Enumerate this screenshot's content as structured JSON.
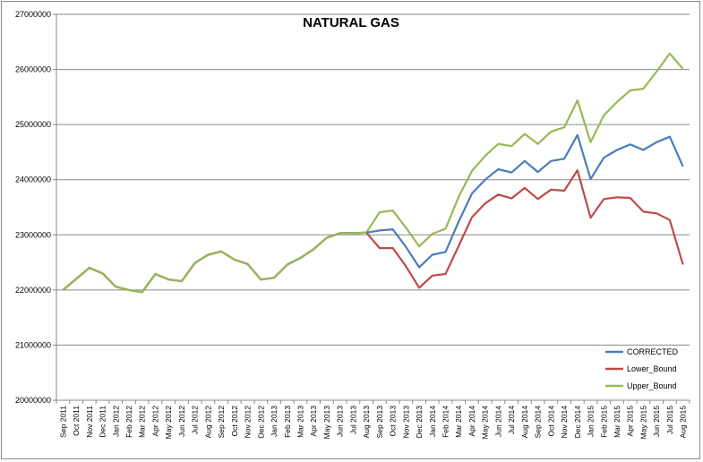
{
  "chart_data": {
    "type": "line",
    "title": "NATURAL  GAS",
    "xlabel": "",
    "ylabel": "",
    "ylim": [
      20000000,
      27000000
    ],
    "y_ticks": [
      "20000000",
      "21000000",
      "22000000",
      "23000000",
      "24000000",
      "25000000",
      "26000000",
      "27000000"
    ],
    "grid": "horizontal",
    "legend_position": "bottom-right",
    "categories": [
      "Sep 2011",
      "Oct 2011",
      "Nov 2011",
      "Dec 2011",
      "Jan 2012",
      "Feb 2012",
      "Mar 2012",
      "Apr 2012",
      "May 2012",
      "Jun 2012",
      "Jul 2012",
      "Aug 2012",
      "Sep 2012",
      "Oct 2012",
      "Nov 2012",
      "Dec 2012",
      "Jan 2013",
      "Feb 2013",
      "Mar 2013",
      "Apr 2013",
      "May 2013",
      "Jun 2013",
      "Jul 2013",
      "Aug 2013",
      "Sep 2013",
      "Oct 2013",
      "Nov 2013",
      "Dec 2013",
      "Jan 2014",
      "Feb 2014",
      "Mar 2014",
      "Apr 2014",
      "May 2014",
      "Jun 2014",
      "Jul 2014",
      "Aug 2014",
      "Sep 2014",
      "Oct 2014",
      "Nov 2014",
      "Dec 2014",
      "Jan 2015",
      "Feb 2015",
      "Mar 2015",
      "Apr 2015",
      "May 2015",
      "Jun 2015",
      "Jul 2015",
      "Aug 2015"
    ],
    "series": [
      {
        "name": "CORRECTED",
        "color": "#4a7ebb",
        "values": [
          22000000,
          22200000,
          22400000,
          22300000,
          22060000,
          22000000,
          21960000,
          22290000,
          22190000,
          22160000,
          22490000,
          22640000,
          22700000,
          22550000,
          22470000,
          22190000,
          22220000,
          22460000,
          22580000,
          22740000,
          22950000,
          23030000,
          23030000,
          23040000,
          23080000,
          23100000,
          22780000,
          22410000,
          22640000,
          22690000,
          23240000,
          23750000,
          24000000,
          24190000,
          24130000,
          24340000,
          24140000,
          24340000,
          24380000,
          24810000,
          24010000,
          24400000,
          24540000,
          24640000,
          24540000,
          24680000,
          24780000,
          24240000
        ]
      },
      {
        "name": "Lower_Bound",
        "color": "#be4b48",
        "values": [
          22000000,
          22200000,
          22400000,
          22300000,
          22060000,
          22000000,
          21960000,
          22290000,
          22190000,
          22160000,
          22490000,
          22640000,
          22700000,
          22550000,
          22470000,
          22190000,
          22220000,
          22460000,
          22580000,
          22740000,
          22950000,
          23030000,
          23030000,
          23040000,
          22760000,
          22760000,
          22430000,
          22040000,
          22260000,
          22290000,
          22800000,
          23320000,
          23570000,
          23730000,
          23660000,
          23850000,
          23650000,
          23820000,
          23800000,
          24170000,
          23310000,
          23650000,
          23680000,
          23670000,
          23420000,
          23390000,
          23270000,
          22460000
        ]
      },
      {
        "name": "Upper_Bound",
        "color": "#98b954",
        "values": [
          22000000,
          22200000,
          22400000,
          22300000,
          22060000,
          22000000,
          21960000,
          22290000,
          22190000,
          22160000,
          22490000,
          22640000,
          22700000,
          22550000,
          22470000,
          22190000,
          22220000,
          22460000,
          22580000,
          22740000,
          22950000,
          23030000,
          23030000,
          23040000,
          23410000,
          23440000,
          23130000,
          22790000,
          23020000,
          23110000,
          23690000,
          24160000,
          24430000,
          24650000,
          24610000,
          24830000,
          24650000,
          24870000,
          24950000,
          25440000,
          24680000,
          25170000,
          25410000,
          25620000,
          25650000,
          25960000,
          26290000,
          26010000
        ]
      }
    ]
  }
}
